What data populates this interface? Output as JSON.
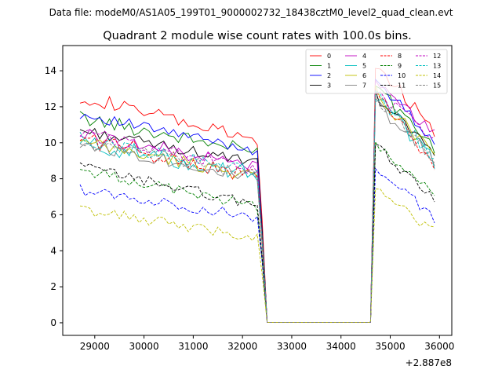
{
  "chart_data": {
    "type": "line",
    "suptitle": "Data file: modeM0/AS1A05_199T01_9000002732_18438cztM0_level2_quad_clean.evt",
    "title": "Quadrant 2 module wise count rates with 100.0s bins.",
    "xlabel": "",
    "ylabel": "",
    "x_offset_label": "+2.887e8",
    "xlim": [
      28350,
      36250
    ],
    "ylim": [
      -0.7,
      15.4
    ],
    "x_ticks": [
      29000,
      30000,
      31000,
      32000,
      33000,
      34000,
      35000,
      36000
    ],
    "x_tick_labels": [
      "29000",
      "30000",
      "31000",
      "32000",
      "33000",
      "34000",
      "35000",
      "36000"
    ],
    "y_ticks": [
      0,
      2,
      4,
      6,
      8,
      10,
      12,
      14
    ],
    "y_tick_labels": [
      "0",
      "2",
      "4",
      "6",
      "8",
      "10",
      "12",
      "14"
    ],
    "grid": false,
    "legend_location": "upper right",
    "segments": [
      {
        "start": 28700,
        "step": 100,
        "n": 38
      },
      {
        "start": 32500,
        "step": 100,
        "n": 22
      },
      {
        "start": 34700,
        "step": 100,
        "n": 13
      }
    ],
    "series": [
      {
        "name": "0",
        "color": "#ff0000",
        "dash": "solid",
        "base": 12.6,
        "slope": -2.6,
        "post": 14.4,
        "post_end": 10.7,
        "noise": 0.4
      },
      {
        "name": "1",
        "color": "#008000",
        "dash": "solid",
        "base": 11.4,
        "slope": -2.0,
        "post": 13.3,
        "post_end": 9.5,
        "noise": 0.4
      },
      {
        "name": "2",
        "color": "#0000ff",
        "dash": "solid",
        "base": 11.6,
        "slope": -2.1,
        "post": 13.5,
        "post_end": 10.1,
        "noise": 0.3
      },
      {
        "name": "3",
        "color": "#000000",
        "dash": "solid",
        "base": 10.7,
        "slope": -1.9,
        "post": 12.6,
        "post_end": 9.5,
        "noise": 0.3
      },
      {
        "name": "4",
        "color": "#bf00bf",
        "dash": "solid",
        "base": 10.5,
        "slope": -1.9,
        "post": 13.2,
        "post_end": 10.5,
        "noise": 0.4
      },
      {
        "name": "5",
        "color": "#00bfbf",
        "dash": "solid",
        "base": 10.0,
        "slope": -1.8,
        "post": 12.6,
        "post_end": 9.0,
        "noise": 0.5
      },
      {
        "name": "6",
        "color": "#bfbf00",
        "dash": "solid",
        "base": 10.0,
        "slope": -1.9,
        "post": 12.8,
        "post_end": 9.3,
        "noise": 0.4
      },
      {
        "name": "7",
        "color": "#808080",
        "dash": "solid",
        "base": 10.0,
        "slope": -2.0,
        "post": 12.2,
        "post_end": 9.0,
        "noise": 0.4
      },
      {
        "name": "8",
        "color": "#ff0000",
        "dash": "dashed",
        "base": 10.3,
        "slope": -2.3,
        "post": 13.0,
        "post_end": 8.4,
        "noise": 0.5
      },
      {
        "name": "9",
        "color": "#008000",
        "dash": "dashed",
        "base": 8.5,
        "slope": -2.1,
        "post": 9.8,
        "post_end": 7.2,
        "noise": 0.3
      },
      {
        "name": "10",
        "color": "#0000ff",
        "dash": "dashed",
        "base": 7.4,
        "slope": -1.6,
        "post": 8.6,
        "post_end": 5.8,
        "noise": 0.3
      },
      {
        "name": "11",
        "color": "#000000",
        "dash": "dashed",
        "base": 8.7,
        "slope": -2.2,
        "post": 9.8,
        "post_end": 6.9,
        "noise": 0.3
      },
      {
        "name": "12",
        "color": "#bf00bf",
        "dash": "dashed",
        "base": 10.6,
        "slope": -2.2,
        "post": 12.9,
        "post_end": 10.0,
        "noise": 0.4
      },
      {
        "name": "13",
        "color": "#00bfbf",
        "dash": "dashed",
        "base": 10.2,
        "slope": -1.9,
        "post": 12.7,
        "post_end": 9.1,
        "noise": 0.4
      },
      {
        "name": "14",
        "color": "#bfbf00",
        "dash": "dashed",
        "base": 6.3,
        "slope": -1.6,
        "post": 7.4,
        "post_end": 5.1,
        "noise": 0.3
      },
      {
        "name": "15",
        "color": "#808080",
        "dash": "dashed",
        "base": 10.0,
        "slope": -1.8,
        "post": 12.6,
        "post_end": 9.2,
        "noise": 0.4
      }
    ]
  }
}
